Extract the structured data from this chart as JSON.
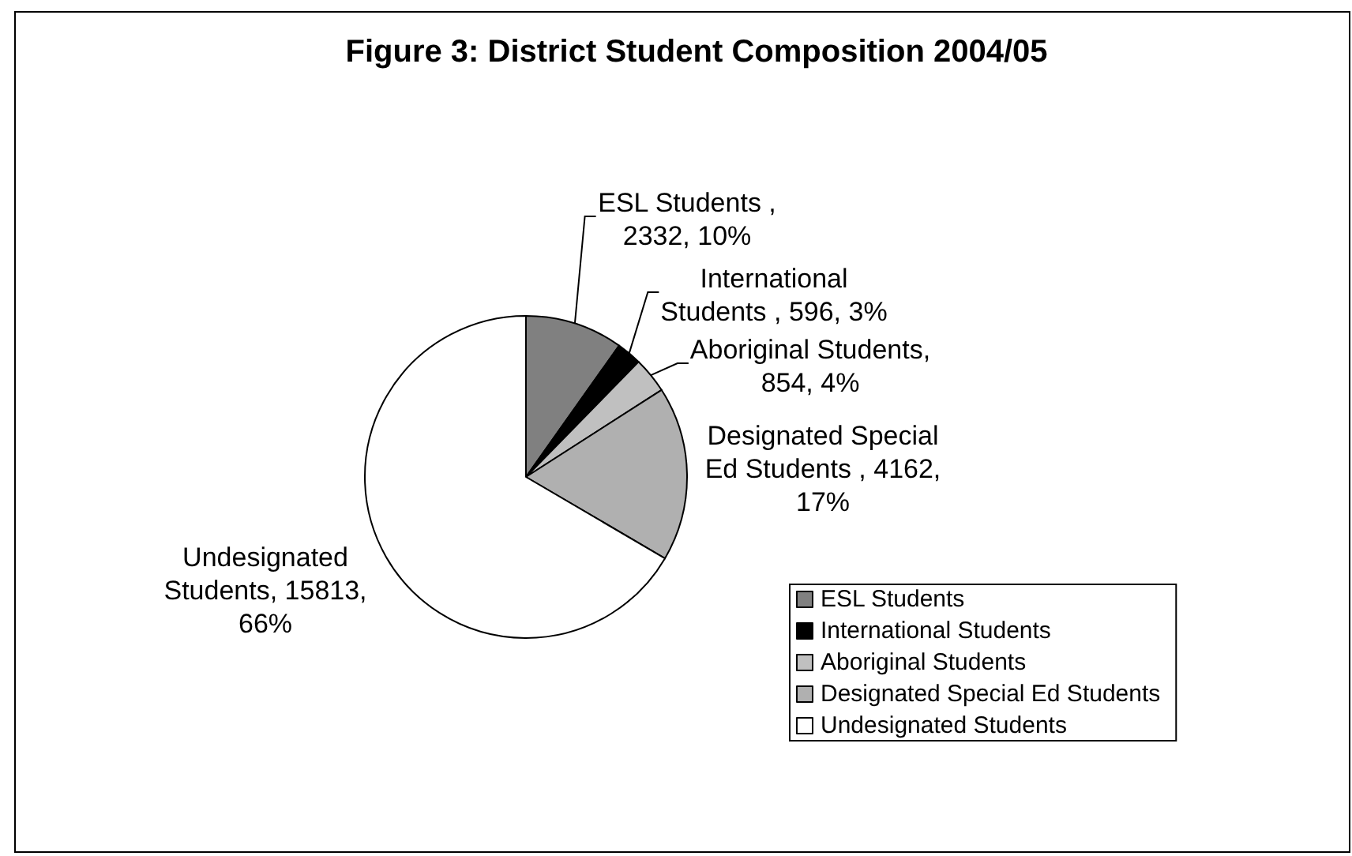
{
  "chart_data": {
    "type": "pie",
    "title": "Figure 3: District Student Composition 2004/05",
    "categories": [
      "ESL Students",
      "International Students",
      "Aboriginal Students",
      "Designated Special Ed Students",
      "Undesignated Students"
    ],
    "values": [
      2332,
      596,
      854,
      4162,
      15813
    ],
    "colors": [
      "#808080",
      "#000000",
      "#c0c0c0",
      "#b0b0b0",
      "#ffffff"
    ],
    "value_labels": [
      "ESL Students , 2332, 10%",
      "International Students , 596, 3%",
      "Aboriginal Students, 854, 4%",
      "Designated Special Ed Students , 4162, 17%",
      "Undesignated Students, 15813, 66%"
    ],
    "legend": "bottom right"
  }
}
